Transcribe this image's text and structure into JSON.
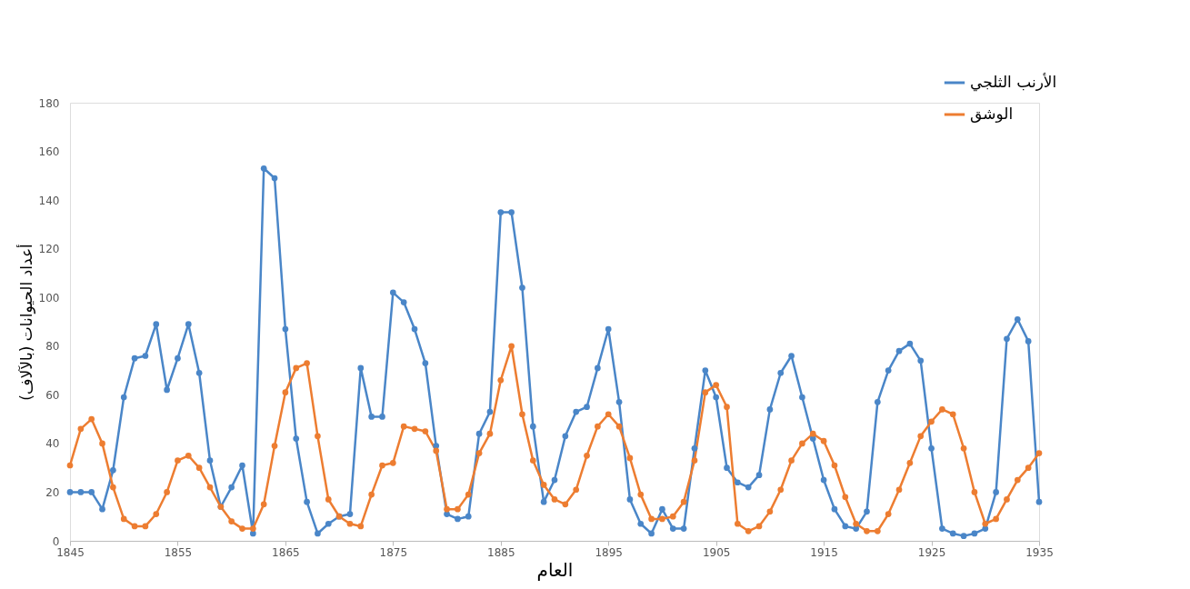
{
  "chart_data": {
    "type": "line",
    "xlabel": "العام",
    "ylabel": "أعداد الحيوانات (بالآلاف)",
    "x": [
      1845,
      1846,
      1847,
      1848,
      1849,
      1850,
      1851,
      1852,
      1853,
      1854,
      1855,
      1856,
      1857,
      1858,
      1859,
      1860,
      1861,
      1862,
      1863,
      1864,
      1865,
      1866,
      1867,
      1868,
      1869,
      1870,
      1871,
      1872,
      1873,
      1874,
      1875,
      1876,
      1877,
      1878,
      1879,
      1880,
      1881,
      1882,
      1883,
      1884,
      1885,
      1886,
      1887,
      1888,
      1889,
      1890,
      1891,
      1892,
      1893,
      1894,
      1895,
      1896,
      1897,
      1898,
      1899,
      1900,
      1901,
      1902,
      1903,
      1904,
      1905,
      1906,
      1907,
      1908,
      1909,
      1910,
      1911,
      1912,
      1913,
      1914,
      1915,
      1916,
      1917,
      1918,
      1919,
      1920,
      1921,
      1922,
      1923,
      1924,
      1925,
      1926,
      1927,
      1928,
      1929,
      1930,
      1931,
      1932,
      1933,
      1934,
      1935
    ],
    "series": [
      {
        "name": "الأرنب الثلجي",
        "color": "#4a86c8",
        "values": [
          20,
          20,
          20,
          13,
          29,
          59,
          75,
          76,
          89,
          62,
          75,
          89,
          69,
          33,
          14,
          22,
          31,
          3,
          153,
          149,
          87,
          42,
          16,
          3,
          7,
          10,
          11,
          71,
          51,
          51,
          102,
          98,
          87,
          73,
          39,
          11,
          9,
          10,
          44,
          53,
          135,
          135,
          104,
          47,
          16,
          25,
          43,
          53,
          55,
          71,
          87,
          57,
          17,
          7,
          3,
          13,
          5,
          5,
          38,
          70,
          59,
          30,
          24,
          22,
          27,
          54,
          69,
          76,
          59,
          42,
          25,
          13,
          6,
          5,
          12,
          57,
          70,
          78,
          81,
          74,
          38,
          5,
          3,
          2,
          3,
          5,
          20,
          83,
          91,
          82,
          16
        ]
      },
      {
        "name": "الوشق",
        "color": "#ed7d31",
        "values": [
          31,
          46,
          50,
          40,
          22,
          9,
          6,
          6,
          11,
          20,
          33,
          35,
          30,
          22,
          14,
          8,
          5,
          5,
          15,
          39,
          61,
          71,
          73,
          43,
          17,
          10,
          7,
          6,
          19,
          31,
          32,
          47,
          46,
          45,
          37,
          13,
          13,
          19,
          36,
          44,
          66,
          80,
          52,
          33,
          23,
          17,
          15,
          21,
          35,
          47,
          52,
          47,
          34,
          19,
          9,
          9,
          10,
          16,
          33,
          61,
          64,
          55,
          7,
          4,
          6,
          12,
          21,
          33,
          40,
          44,
          41,
          31,
          18,
          7,
          4,
          4,
          11,
          21,
          32,
          43,
          49,
          54,
          52,
          38,
          20,
          7,
          9,
          17,
          25,
          30,
          36
        ]
      }
    ],
    "xlim": [
      1845,
      1935
    ],
    "xticks": [
      1845,
      1855,
      1865,
      1875,
      1885,
      1895,
      1905,
      1915,
      1925,
      1935
    ],
    "ylim": [
      0,
      180
    ],
    "yticks": [
      0,
      20,
      40,
      60,
      80,
      100,
      120,
      140,
      160,
      180
    ],
    "grid": false,
    "legend": "top right",
    "marker": "circle",
    "line_style": "solid"
  }
}
